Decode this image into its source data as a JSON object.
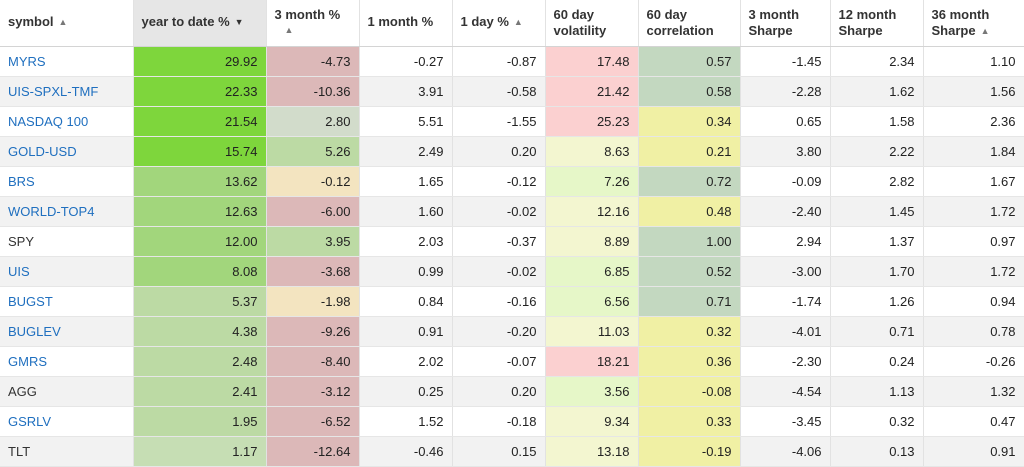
{
  "columns": [
    {
      "label1": "symbol",
      "label2": "",
      "sort": "asc-small"
    },
    {
      "label1": "year to date %",
      "label2": "",
      "sort": "desc-active"
    },
    {
      "label1": "3 month %",
      "label2": "",
      "sort": "asc-below"
    },
    {
      "label1": "1 month %",
      "label2": "",
      "sort": ""
    },
    {
      "label1": "1 day %",
      "label2": "",
      "sort": "asc-small"
    },
    {
      "label1": "60 day",
      "label2": "volatility",
      "sort": ""
    },
    {
      "label1": "60 day",
      "label2": "correlation",
      "sort": ""
    },
    {
      "label1": "3 month",
      "label2": "Sharpe",
      "sort": ""
    },
    {
      "label1": "12 month",
      "label2": "Sharpe",
      "sort": ""
    },
    {
      "label1": "36 month",
      "label2": "Sharpe",
      "sort": "asc-small"
    }
  ],
  "sort_icons": {
    "asc": "▲",
    "desc": "▼"
  },
  "colors": {
    "green_strong": "#7ed63c",
    "green_mid": "#a2d67c",
    "green_light": "#bcdaa4",
    "green_pale": "#c6deb4",
    "grey_green": "#d2dccb",
    "red_light": "#dcb8b8",
    "red_pale": "#fbd0d0",
    "beige": "#f3e4c0",
    "yellow": "#f0f0a4",
    "yellow_pale": "#f3f6d0",
    "lime_pale": "#e6f7c8",
    "sea_green": "#c3d8c0",
    "pale_gray": "#e7e7e7"
  },
  "rows": [
    {
      "symbol": "MYRS",
      "link": true,
      "ytd": "29.92",
      "m3": "-4.73",
      "m1": "-0.27",
      "d1": "-0.87",
      "vol": "17.48",
      "corr": "0.57",
      "s3": "-1.45",
      "s12": "2.34",
      "s36": "1.10",
      "bg": {
        "ytd": "green_strong",
        "m3": "red_light",
        "vol": "red_pale",
        "corr": "sea_green"
      }
    },
    {
      "symbol": "UIS-SPXL-TMF",
      "link": true,
      "ytd": "22.33",
      "m3": "-10.36",
      "m1": "3.91",
      "d1": "-0.58",
      "vol": "21.42",
      "corr": "0.58",
      "s3": "-2.28",
      "s12": "1.62",
      "s36": "1.56",
      "bg": {
        "ytd": "green_strong",
        "m3": "red_light",
        "vol": "red_pale",
        "corr": "sea_green"
      }
    },
    {
      "symbol": "NASDAQ 100",
      "link": true,
      "ytd": "21.54",
      "m3": "2.80",
      "m1": "5.51",
      "d1": "-1.55",
      "vol": "25.23",
      "corr": "0.34",
      "s3": "0.65",
      "s12": "1.58",
      "s36": "2.36",
      "bg": {
        "ytd": "green_strong",
        "m3": "grey_green",
        "vol": "red_pale",
        "corr": "yellow"
      }
    },
    {
      "symbol": "GOLD-USD",
      "link": true,
      "ytd": "15.74",
      "m3": "5.26",
      "m1": "2.49",
      "d1": "0.20",
      "vol": "8.63",
      "corr": "0.21",
      "s3": "3.80",
      "s12": "2.22",
      "s36": "1.84",
      "bg": {
        "ytd": "green_strong",
        "m3": "green_light",
        "vol": "yellow_pale",
        "corr": "yellow"
      }
    },
    {
      "symbol": "BRS",
      "link": true,
      "ytd": "13.62",
      "m3": "-0.12",
      "m1": "1.65",
      "d1": "-0.12",
      "vol": "7.26",
      "corr": "0.72",
      "s3": "-0.09",
      "s12": "2.82",
      "s36": "1.67",
      "bg": {
        "ytd": "green_mid",
        "m3": "beige",
        "vol": "lime_pale",
        "corr": "sea_green"
      }
    },
    {
      "symbol": "WORLD-TOP4",
      "link": true,
      "ytd": "12.63",
      "m3": "-6.00",
      "m1": "1.60",
      "d1": "-0.02",
      "vol": "12.16",
      "corr": "0.48",
      "s3": "-2.40",
      "s12": "1.45",
      "s36": "1.72",
      "bg": {
        "ytd": "green_mid",
        "m3": "red_light",
        "vol": "yellow_pale",
        "corr": "yellow"
      }
    },
    {
      "symbol": "SPY",
      "link": false,
      "ytd": "12.00",
      "m3": "3.95",
      "m1": "2.03",
      "d1": "-0.37",
      "vol": "8.89",
      "corr": "1.00",
      "s3": "2.94",
      "s12": "1.37",
      "s36": "0.97",
      "bg": {
        "ytd": "green_mid",
        "m3": "green_light",
        "vol": "yellow_pale",
        "corr": "sea_green"
      }
    },
    {
      "symbol": "UIS",
      "link": true,
      "ytd": "8.08",
      "m3": "-3.68",
      "m1": "0.99",
      "d1": "-0.02",
      "vol": "6.85",
      "corr": "0.52",
      "s3": "-3.00",
      "s12": "1.70",
      "s36": "1.72",
      "bg": {
        "ytd": "green_mid",
        "m3": "red_light",
        "vol": "lime_pale",
        "corr": "sea_green"
      }
    },
    {
      "symbol": "BUGST",
      "link": true,
      "ytd": "5.37",
      "m3": "-1.98",
      "m1": "0.84",
      "d1": "-0.16",
      "vol": "6.56",
      "corr": "0.71",
      "s3": "-1.74",
      "s12": "1.26",
      "s36": "0.94",
      "bg": {
        "ytd": "green_light",
        "m3": "beige",
        "vol": "lime_pale",
        "corr": "sea_green"
      }
    },
    {
      "symbol": "BUGLEV",
      "link": true,
      "ytd": "4.38",
      "m3": "-9.26",
      "m1": "0.91",
      "d1": "-0.20",
      "vol": "11.03",
      "corr": "0.32",
      "s3": "-4.01",
      "s12": "0.71",
      "s36": "0.78",
      "bg": {
        "ytd": "green_light",
        "m3": "red_light",
        "vol": "yellow_pale",
        "corr": "yellow"
      }
    },
    {
      "symbol": "GMRS",
      "link": true,
      "ytd": "2.48",
      "m3": "-8.40",
      "m1": "2.02",
      "d1": "-0.07",
      "vol": "18.21",
      "corr": "0.36",
      "s3": "-2.30",
      "s12": "0.24",
      "s36": "-0.26",
      "bg": {
        "ytd": "green_light",
        "m3": "red_light",
        "vol": "red_pale",
        "corr": "yellow"
      }
    },
    {
      "symbol": "AGG",
      "link": false,
      "ytd": "2.41",
      "m3": "-3.12",
      "m1": "0.25",
      "d1": "0.20",
      "vol": "3.56",
      "corr": "-0.08",
      "s3": "-4.54",
      "s12": "1.13",
      "s36": "1.32",
      "bg": {
        "ytd": "green_light",
        "m3": "red_light",
        "vol": "lime_pale",
        "corr": "yellow"
      }
    },
    {
      "symbol": "GSRLV",
      "link": true,
      "ytd": "1.95",
      "m3": "-6.52",
      "m1": "1.52",
      "d1": "-0.18",
      "vol": "9.34",
      "corr": "0.33",
      "s3": "-3.45",
      "s12": "0.32",
      "s36": "0.47",
      "bg": {
        "ytd": "green_light",
        "m3": "red_light",
        "vol": "yellow_pale",
        "corr": "yellow"
      }
    },
    {
      "symbol": "TLT",
      "link": false,
      "ytd": "1.17",
      "m3": "-12.64",
      "m1": "-0.46",
      "d1": "0.15",
      "vol": "13.18",
      "corr": "-0.19",
      "s3": "-4.06",
      "s12": "0.13",
      "s36": "0.91",
      "bg": {
        "ytd": "green_pale",
        "m3": "red_light",
        "vol": "yellow_pale",
        "corr": "yellow"
      }
    }
  ]
}
